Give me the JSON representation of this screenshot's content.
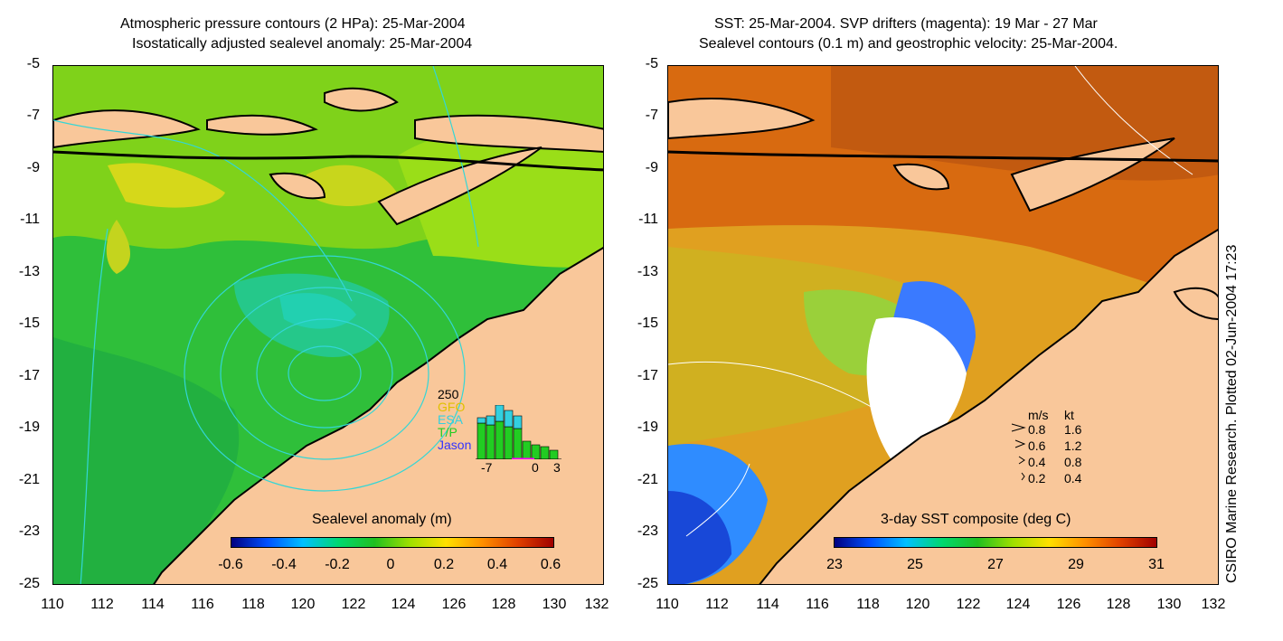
{
  "left_panel": {
    "title_line1": "Atmospheric pressure contours (2 HPa): 25-Mar-2004",
    "title_line2": "Isostatically adjusted sealevel anomaly: 25-Mar-2004",
    "y_ticks": [
      "-5",
      "-7",
      "-9",
      "-11",
      "-13",
      "-15",
      "-17",
      "-19",
      "-21",
      "-23",
      "-25"
    ],
    "x_ticks": [
      "110",
      "112",
      "114",
      "116",
      "118",
      "120",
      "122",
      "124",
      "126",
      "128",
      "130",
      "132"
    ],
    "colorbar": {
      "label": "Sealevel anomaly (m)",
      "ticks": [
        "-0.6",
        "-0.4",
        "-0.2",
        "0",
        "0.2",
        "0.4",
        "0.6"
      ]
    },
    "histogram_legend": {
      "max": "250",
      "items": [
        {
          "label": "GFO",
          "color": "#e0c000"
        },
        {
          "label": "ESA",
          "color": "#33d0e0"
        },
        {
          "label": "T/P",
          "color": "#22cc22"
        },
        {
          "label": "Jason",
          "color": "#3333ff"
        }
      ],
      "axis_ticks": [
        "-7",
        "0",
        "3"
      ]
    }
  },
  "right_panel": {
    "title_line1": "SST: 25-Mar-2004. SVP drifters (magenta): 19 Mar - 27 Mar",
    "title_line2": "Sealevel contours (0.1 m) and geostrophic velocity: 25-Mar-2004.",
    "y_ticks": [
      "-5",
      "-7",
      "-9",
      "-11",
      "-13",
      "-15",
      "-17",
      "-19",
      "-21",
      "-23",
      "-25"
    ],
    "x_ticks": [
      "110",
      "112",
      "114",
      "116",
      "118",
      "120",
      "122",
      "124",
      "126",
      "128",
      "130",
      "132"
    ],
    "colorbar": {
      "label": "3-day SST composite (deg C)",
      "ticks": [
        "23",
        "25",
        "27",
        "29",
        "31"
      ]
    },
    "velocity_legend": {
      "header_ms": "m/s",
      "header_kt": "kt",
      "rows": [
        {
          "ms": "0.8",
          "kt": "1.6"
        },
        {
          "ms": "0.6",
          "kt": "1.2"
        },
        {
          "ms": "0.4",
          "kt": "0.8"
        },
        {
          "ms": "0.2",
          "kt": "0.4"
        }
      ]
    }
  },
  "credit": "CSIRO Marine Research. Plotted 02-Jun-2004 17:23",
  "colors": {
    "land": "#f9c79a",
    "coast": "#000000",
    "contour": "#33d6d6",
    "sla_mid": "#22c040"
  }
}
